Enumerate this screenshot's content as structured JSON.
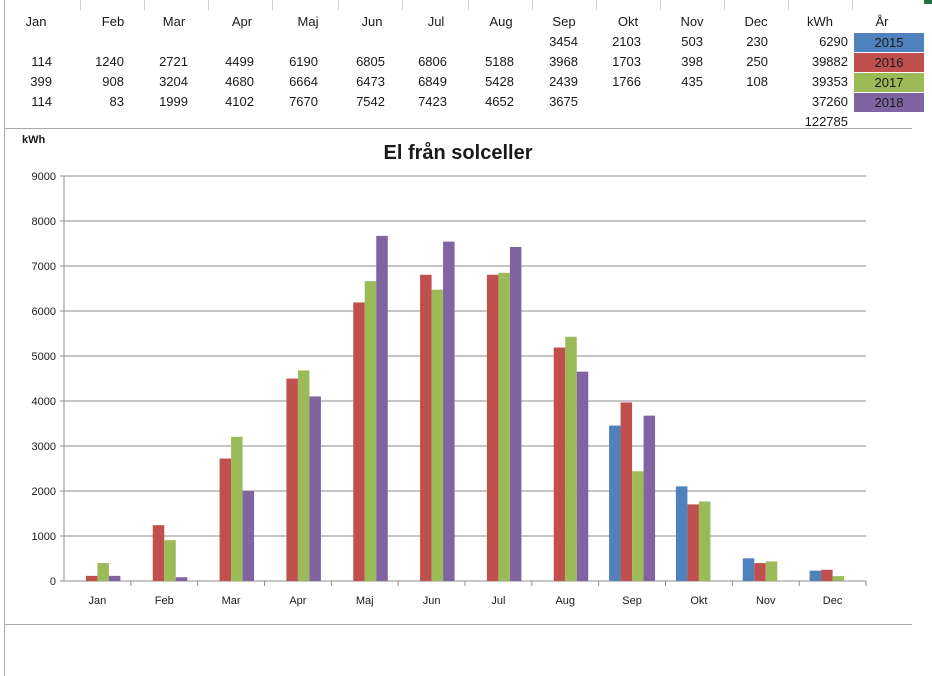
{
  "sheet": {
    "headers": [
      "Jan",
      "Feb",
      "Mar",
      "Apr",
      "Maj",
      "Jun",
      "Jul",
      "Aug",
      "Sep",
      "Okt",
      "Nov",
      "Dec",
      "kWh",
      "År"
    ],
    "rows": [
      {
        "values": [
          "",
          "",
          "",
          "",
          "",
          "",
          "",
          "",
          "3454",
          "2103",
          "503",
          "230"
        ],
        "total": "6290",
        "year": "2015",
        "color": "#4f81bd"
      },
      {
        "values": [
          "114",
          "1240",
          "2721",
          "4499",
          "6190",
          "6805",
          "6806",
          "5188",
          "3968",
          "1703",
          "398",
          "250"
        ],
        "total": "39882",
        "year": "2016",
        "color": "#c0504d"
      },
      {
        "values": [
          "399",
          "908",
          "3204",
          "4680",
          "6664",
          "6473",
          "6849",
          "5428",
          "2439",
          "1766",
          "435",
          "108"
        ],
        "total": "39353",
        "year": "2017",
        "color": "#9bbb59"
      },
      {
        "values": [
          "114",
          "83",
          "1999",
          "4102",
          "7670",
          "7542",
          "7423",
          "4652",
          "3675",
          "",
          "",
          ""
        ],
        "total": "37260",
        "year": "2018",
        "color": "#8064a2"
      }
    ],
    "grand_total": "122785"
  },
  "chart_data": {
    "type": "bar",
    "title": "El från solceller",
    "ylabel": "kWh",
    "xlabel": "",
    "ylim": [
      0,
      9000
    ],
    "yticks": [
      0,
      1000,
      2000,
      3000,
      4000,
      5000,
      6000,
      7000,
      8000,
      9000
    ],
    "grid": true,
    "legend": "none",
    "categories": [
      "Jan",
      "Feb",
      "Mar",
      "Apr",
      "Maj",
      "Jun",
      "Jul",
      "Aug",
      "Sep",
      "Okt",
      "Nov",
      "Dec"
    ],
    "series": [
      {
        "color": "#4f81bd",
        "values": [
          null,
          null,
          null,
          null,
          null,
          null,
          null,
          null,
          3454,
          2103,
          503,
          230
        ]
      },
      {
        "color": "#c0504d",
        "values": [
          114,
          1240,
          2721,
          4499,
          6190,
          6805,
          6806,
          5188,
          3968,
          1703,
          398,
          250
        ]
      },
      {
        "color": "#9bbb59",
        "values": [
          399,
          908,
          3204,
          4680,
          6664,
          6473,
          6849,
          5428,
          2439,
          1766,
          435,
          108
        ]
      },
      {
        "color": "#8064a2",
        "values": [
          114,
          83,
          1999,
          4102,
          7670,
          7542,
          7423,
          4652,
          3675,
          null,
          null,
          null
        ]
      }
    ]
  }
}
